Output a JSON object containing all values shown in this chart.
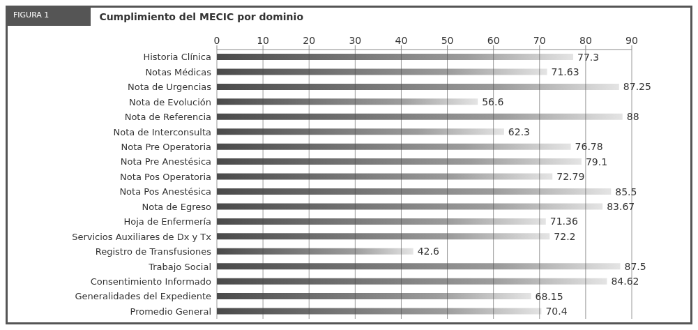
{
  "chart_data": {
    "type": "bar",
    "orientation": "horizontal",
    "title": "Cumplimiento del MECIC por dominio",
    "annotations": [
      "FIGURA 1"
    ],
    "categories": [
      "Historia Clínica",
      "Notas Médicas",
      "Nota de Urgencias",
      "Nota de Evolución",
      "Nota de Referencia",
      "Nota de Interconsulta",
      "Nota Pre Operatoria",
      "Nota Pre Anestésica",
      "Nota Pos Operatoria",
      "Nota Pos Anestésica",
      "Nota de Egreso",
      "Hoja de Enfermería",
      "Servicios Auxiliares de Dx y Tx",
      "Registro de Transfusiones",
      "Trabajo Social",
      "Consentimiento Informado",
      "Generalidades del Expediente",
      "Promedio General"
    ],
    "values": [
      77.3,
      71.63,
      87.25,
      56.6,
      88,
      62.3,
      76.78,
      79.1,
      72.79,
      85.5,
      83.67,
      71.36,
      72.2,
      42.6,
      87.5,
      84.62,
      68.15,
      70.4
    ],
    "color": "#4a4a4a",
    "xlim": [
      0,
      90
    ],
    "xticks": [
      0,
      10,
      20,
      30,
      40,
      50,
      60,
      70,
      80,
      90
    ],
    "grid": "x",
    "data_labels": true
  }
}
